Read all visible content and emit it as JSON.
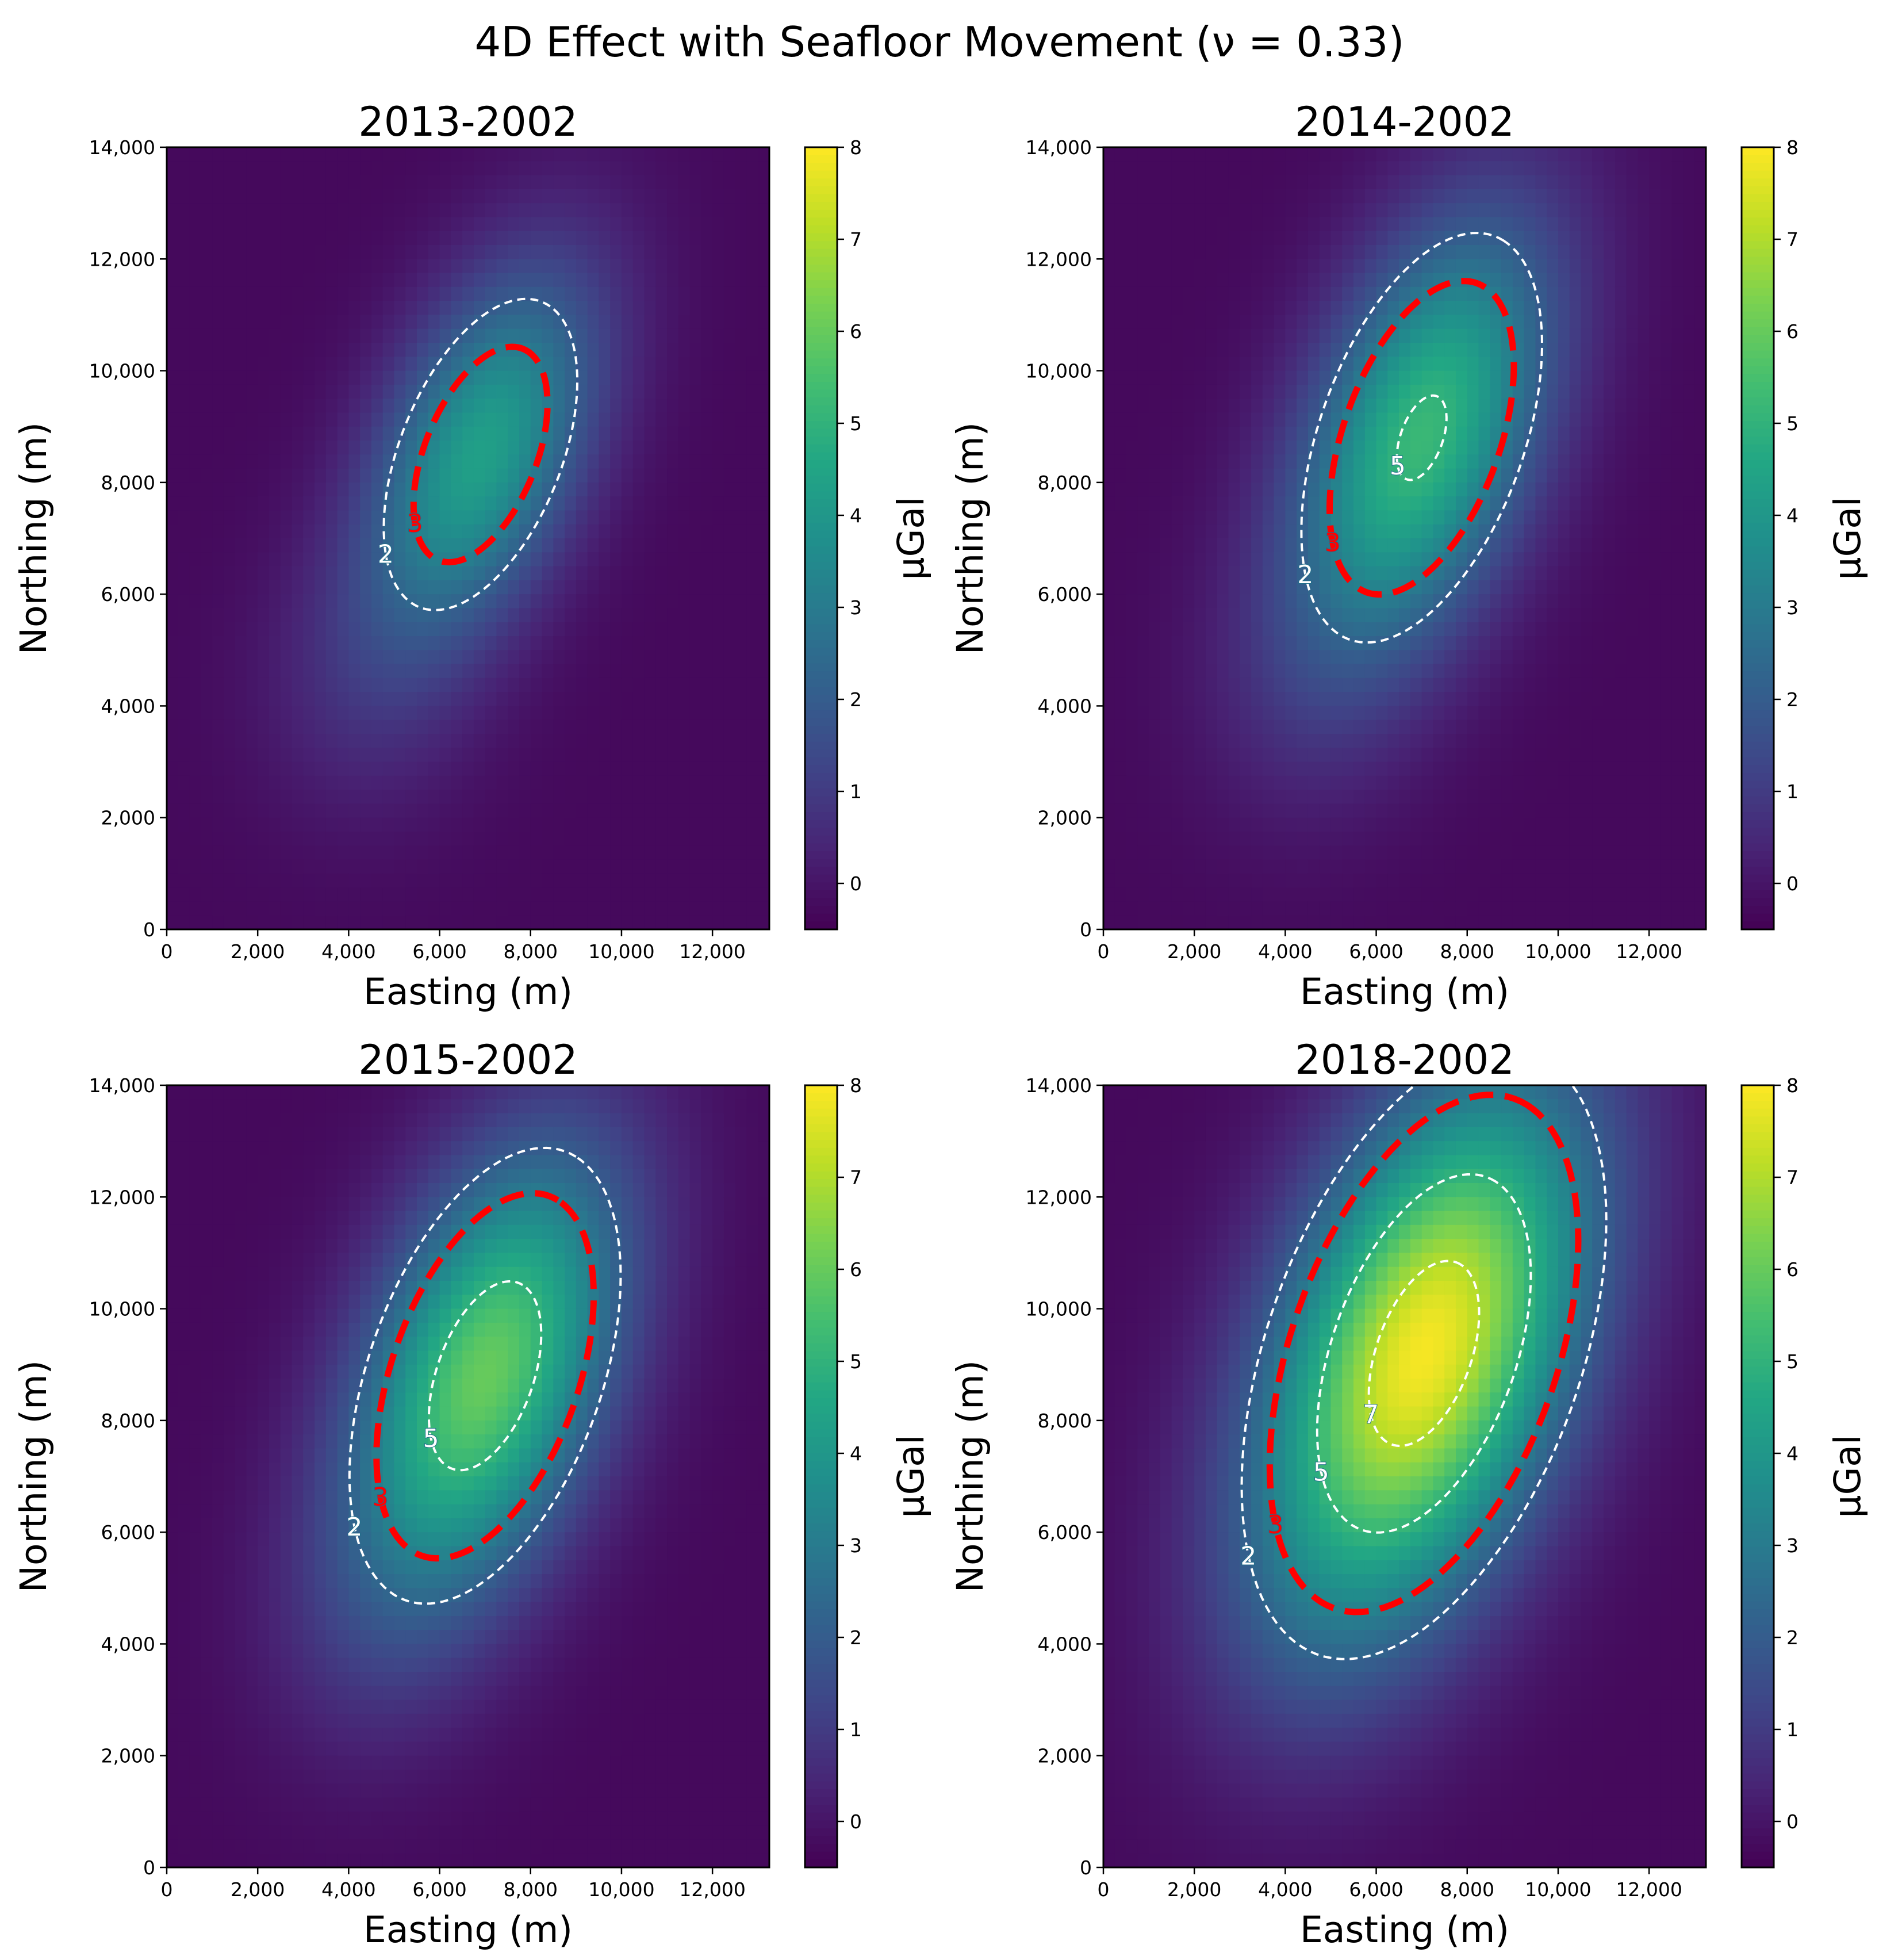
{
  "figure": {
    "suptitle": "4D Effect with Seafloor Movement (ν = 0.33)"
  },
  "chart_data": [
    {
      "type": "heatmap",
      "title": "2013-2002",
      "xlabel": "Easting (m)",
      "ylabel": "Northing (m)",
      "xlim": [
        0,
        13250
      ],
      "ylim": [
        0,
        14000
      ],
      "xticks": [
        0,
        2000,
        4000,
        6000,
        8000,
        10000,
        12000
      ],
      "xtick_labels": [
        "0",
        "2,000",
        "4,000",
        "6,000",
        "8,000",
        "10,000",
        "12,000"
      ],
      "yticks": [
        0,
        2000,
        4000,
        6000,
        8000,
        10000,
        12000,
        14000
      ],
      "ytick_labels": [
        "0",
        "2,000",
        "4,000",
        "6,000",
        "8,000",
        "10,000",
        "12,000",
        "14,000"
      ],
      "colorbar": {
        "label": "μGal",
        "range": [
          -0.5,
          8
        ],
        "ticks": [
          0,
          1,
          2,
          3,
          4,
          5,
          6,
          7,
          8
        ],
        "tick_labels": [
          "0",
          "1",
          "2",
          "3",
          "4",
          "5",
          "6",
          "7",
          "8"
        ],
        "colormap": "viridis"
      },
      "field": {
        "peak_value": 4.3,
        "center": [
          6900,
          8500
        ],
        "sigma_major": 2600,
        "sigma_minor": 1450,
        "angle_deg": 60,
        "background": -0.3,
        "secondary": {
          "amplitude": 0.6,
          "center": [
            4300,
            4200
          ],
          "sigma": 1800
        }
      },
      "contours": [
        {
          "level": 2,
          "label": "2",
          "color": "#ffffff",
          "style": "dashed",
          "linewidth": "thin"
        },
        {
          "level": 3,
          "label": "3",
          "color": "#ff0000",
          "style": "dashed",
          "linewidth": "thick"
        }
      ]
    },
    {
      "type": "heatmap",
      "title": "2014-2002",
      "xlabel": "Easting (m)",
      "ylabel": "Northing (m)",
      "xlim": [
        0,
        13250
      ],
      "ylim": [
        0,
        14000
      ],
      "xticks": [
        0,
        2000,
        4000,
        6000,
        8000,
        10000,
        12000
      ],
      "xtick_labels": [
        "0",
        "2,000",
        "4,000",
        "6,000",
        "8,000",
        "10,000",
        "12,000"
      ],
      "yticks": [
        0,
        2000,
        4000,
        6000,
        8000,
        10000,
        12000,
        14000
      ],
      "ytick_labels": [
        "0",
        "2,000",
        "4,000",
        "6,000",
        "8,000",
        "10,000",
        "12,000",
        "14,000"
      ],
      "colorbar": {
        "label": "μGal",
        "range": [
          -0.5,
          8
        ],
        "ticks": [
          0,
          1,
          2,
          3,
          4,
          5,
          6,
          7,
          8
        ],
        "tick_labels": [
          "0",
          "1",
          "2",
          "3",
          "4",
          "5",
          "6",
          "7",
          "8"
        ],
        "colormap": "viridis"
      },
      "field": {
        "peak_value": 5.2,
        "center": [
          7000,
          8800
        ],
        "sigma_major": 3000,
        "sigma_minor": 1650,
        "angle_deg": 63,
        "background": -0.3,
        "secondary": {
          "amplitude": 0.4,
          "center": [
            4300,
            4200
          ],
          "sigma": 1800
        }
      },
      "contours": [
        {
          "level": 2,
          "label": "2",
          "color": "#ffffff",
          "style": "dashed",
          "linewidth": "thin"
        },
        {
          "level": 3,
          "label": "3",
          "color": "#ff0000",
          "style": "dashed",
          "linewidth": "thick"
        },
        {
          "level": 5,
          "label": "5",
          "color": "#ffffff",
          "style": "dashed",
          "linewidth": "thin"
        }
      ]
    },
    {
      "type": "heatmap",
      "title": "2015-2002",
      "xlabel": "Easting (m)",
      "ylabel": "Northing (m)",
      "xlim": [
        0,
        13250
      ],
      "ylim": [
        0,
        14000
      ],
      "xticks": [
        0,
        2000,
        4000,
        6000,
        8000,
        10000,
        12000
      ],
      "xtick_labels": [
        "0",
        "2,000",
        "4,000",
        "6,000",
        "8,000",
        "10,000",
        "12,000"
      ],
      "yticks": [
        0,
        2000,
        4000,
        6000,
        8000,
        10000,
        12000,
        14000
      ],
      "ytick_labels": [
        "0",
        "2,000",
        "4,000",
        "6,000",
        "8,000",
        "10,000",
        "12,000",
        "14,000"
      ],
      "colorbar": {
        "label": "μGal",
        "range": [
          -0.5,
          8
        ],
        "ticks": [
          0,
          1,
          2,
          3,
          4,
          5,
          6,
          7,
          8
        ],
        "tick_labels": [
          "0",
          "1",
          "2",
          "3",
          "4",
          "5",
          "6",
          "7",
          "8"
        ],
        "colormap": "viridis"
      },
      "field": {
        "peak_value": 6.0,
        "center": [
          7000,
          8800
        ],
        "sigma_major": 3100,
        "sigma_minor": 1750,
        "angle_deg": 63,
        "background": -0.3,
        "secondary": {
          "amplitude": 0.4,
          "center": [
            4300,
            4200
          ],
          "sigma": 1800
        }
      },
      "contours": [
        {
          "level": 2,
          "label": "2",
          "color": "#ffffff",
          "style": "dashed",
          "linewidth": "thin"
        },
        {
          "level": 3,
          "label": "3",
          "color": "#ff0000",
          "style": "dashed",
          "linewidth": "thick"
        },
        {
          "level": 5,
          "label": "5",
          "color": "#ffffff",
          "style": "dashed",
          "linewidth": "thin"
        }
      ]
    },
    {
      "type": "heatmap",
      "title": "2018-2002",
      "xlabel": "Easting (m)",
      "ylabel": "Northing (m)",
      "xlim": [
        0,
        13250
      ],
      "ylim": [
        0,
        14000
      ],
      "xticks": [
        0,
        2000,
        4000,
        6000,
        8000,
        10000,
        12000
      ],
      "xtick_labels": [
        "0",
        "2,000",
        "4,000",
        "6,000",
        "8,000",
        "10,000",
        "12,000"
      ],
      "yticks": [
        0,
        2000,
        4000,
        6000,
        8000,
        10000,
        12000,
        14000
      ],
      "ytick_labels": [
        "0",
        "2,000",
        "4,000",
        "6,000",
        "8,000",
        "10,000",
        "12,000",
        "14,000"
      ],
      "colorbar": {
        "label": "μGal",
        "range": [
          -0.5,
          8
        ],
        "ticks": [
          0,
          1,
          2,
          3,
          4,
          5,
          6,
          7,
          8
        ],
        "tick_labels": [
          "0",
          "1",
          "2",
          "3",
          "4",
          "5",
          "6",
          "7",
          "8"
        ],
        "colormap": "viridis"
      },
      "field": {
        "peak_value": 7.9,
        "center": [
          7050,
          9200
        ],
        "sigma_major": 3700,
        "sigma_minor": 2100,
        "angle_deg": 63,
        "background": -0.3,
        "secondary": {
          "amplitude": 0.3,
          "center": [
            4300,
            4200
          ],
          "sigma": 1800
        }
      },
      "contours": [
        {
          "level": 2,
          "label": "2",
          "color": "#ffffff",
          "style": "dashed",
          "linewidth": "thin"
        },
        {
          "level": 3,
          "label": "3",
          "color": "#ff0000",
          "style": "dashed",
          "linewidth": "thick"
        },
        {
          "level": 5,
          "label": "5",
          "color": "#ffffff",
          "style": "dashed",
          "linewidth": "thin"
        },
        {
          "level": 7,
          "label": "7",
          "color": "#ffffff",
          "style": "dashed",
          "linewidth": "thin"
        }
      ]
    }
  ]
}
